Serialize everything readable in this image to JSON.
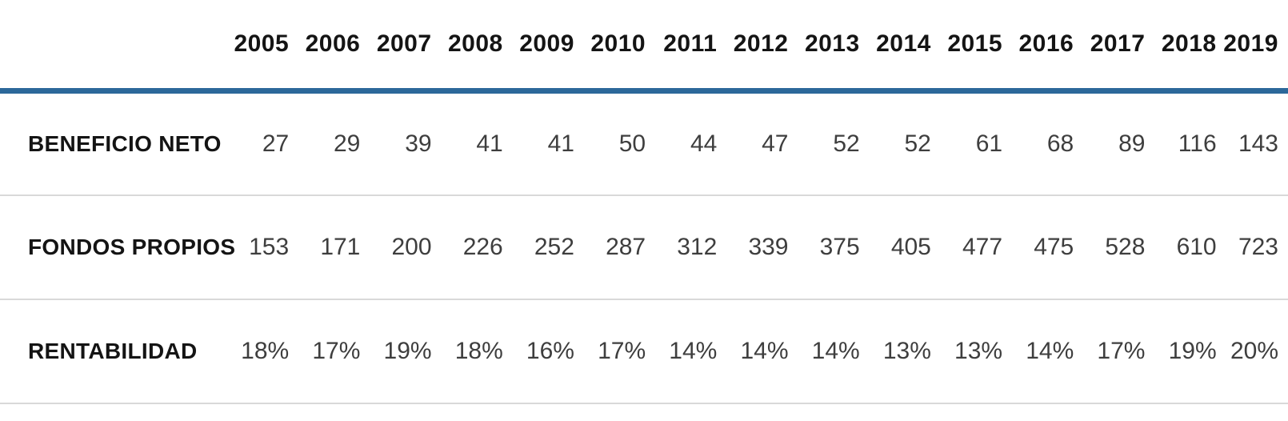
{
  "chart_data": {
    "type": "table",
    "title": "",
    "categories": [
      "2005",
      "2006",
      "2007",
      "2008",
      "2009",
      "2010",
      "2011",
      "2012",
      "2013",
      "2014",
      "2015",
      "2016",
      "2017",
      "2018",
      "2019"
    ],
    "series": [
      {
        "name": "BENEFICIO NETO",
        "values": [
          27,
          29,
          39,
          41,
          41,
          50,
          44,
          47,
          52,
          52,
          61,
          68,
          89,
          116,
          143
        ]
      },
      {
        "name": "FONDOS PROPIOS",
        "values": [
          153,
          171,
          200,
          226,
          252,
          287,
          312,
          339,
          375,
          405,
          477,
          475,
          528,
          610,
          723
        ]
      },
      {
        "name": "RENTABILIDAD",
        "values": [
          "18%",
          "17%",
          "19%",
          "18%",
          "16%",
          "17%",
          "14%",
          "14%",
          "14%",
          "13%",
          "13%",
          "14%",
          "17%",
          "19%",
          "20%"
        ]
      }
    ],
    "layout": {
      "label_column_alignment": "left",
      "value_alignment": "right",
      "header_rule": "thick-blue",
      "row_dividers": "light-gray"
    }
  },
  "colors": {
    "accent_line": "#2c689a",
    "divider": "#d9d9d9",
    "header_text": "#141414",
    "value_text": "#3e3e3e",
    "background": "#ffffff"
  }
}
